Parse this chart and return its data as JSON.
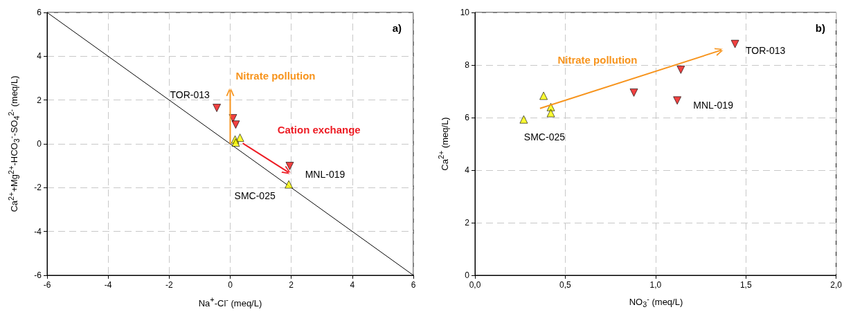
{
  "chart_data": [
    {
      "type": "scatter",
      "title": "a)",
      "xlabel": "Na$^{+}$-Cl$^{-}$ (meq/L)",
      "ylabel": "Ca$^{2+}$+Mg$^{2+}$-HCO$_{3}$$^{-}$-SO$_{4}$$^{2-}$ (meq/L)",
      "xlim": [
        -6,
        6
      ],
      "ylim": [
        -6,
        6
      ],
      "xticks": [
        -6,
        -4,
        -2,
        0,
        2,
        4,
        6
      ],
      "yticks": [
        -6,
        -4,
        -2,
        0,
        2,
        4,
        6
      ],
      "grid": true,
      "series": [
        {
          "type": "line",
          "x": [
            -6,
            6
          ],
          "values": [
            6,
            -6
          ],
          "color": "#000000",
          "marker": "none"
        },
        {
          "x": [
            -0.44,
            0.09,
            0.18,
            1.95
          ],
          "values": [
            1.64,
            1.17,
            0.88,
            -1.01
          ],
          "color": "#ee1111",
          "marker": "triangle-down"
        },
        {
          "x": [
            0.32,
            0.16,
            0.18,
            1.92
          ],
          "values": [
            0.28,
            0.2,
            0.06,
            -1.85
          ],
          "color": "#ffff00",
          "marker": "triangle"
        }
      ],
      "annotations": [
        {
          "text": "TOR-013",
          "x": -0.44,
          "y": 1.64
        },
        {
          "text": "MNL-019",
          "x": 1.95,
          "y": -1.01
        },
        {
          "text": "SMC-025",
          "x": 1.92,
          "y": -1.85
        },
        "Nitrate pollution",
        "Cation exchange"
      ]
    },
    {
      "type": "scatter",
      "title": "b)",
      "xlabel": "NO$_{3}$$^{-}$ (meq/L)",
      "ylabel": "Ca$^{2+}$ (meq/L)",
      "xlim": [
        0,
        2
      ],
      "ylim": [
        0,
        10
      ],
      "xticks": [
        {
          "value": 0,
          "label": "0,0"
        },
        {
          "value": 0.5,
          "label": "0,5"
        },
        {
          "value": 1,
          "label": "1,0"
        },
        {
          "value": 1.5,
          "label": "1,5"
        },
        {
          "value": 2,
          "label": "2,0"
        }
      ],
      "yticks": [
        0,
        2,
        4,
        6,
        8,
        10
      ],
      "grid": true,
      "series": [
        {
          "x": [
            0.88,
            1.12,
            1.14,
            1.44
          ],
          "values": [
            6.95,
            6.65,
            7.82,
            8.8
          ],
          "color": "#ee1111",
          "marker": "triangle-down"
        },
        {
          "x": [
            0.27,
            0.38,
            0.42,
            0.42
          ],
          "values": [
            5.93,
            6.83,
            6.4,
            6.17
          ],
          "color": "#ffff00",
          "marker": "triangle"
        }
      ],
      "annotations": [
        {
          "text": "TOR-013",
          "x": 1.44,
          "y": 8.8
        },
        {
          "text": "MNL-019",
          "x": 1.12,
          "y": 6.65
        },
        {
          "text": "SMC-025",
          "x": 0.27,
          "y": 5.93
        },
        "Nitrate pollution"
      ]
    }
  ]
}
